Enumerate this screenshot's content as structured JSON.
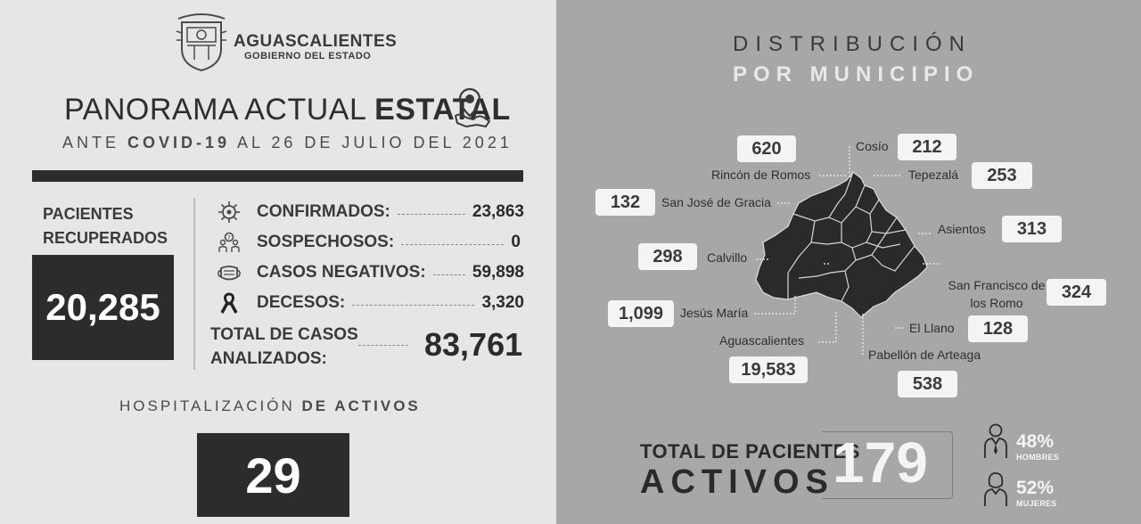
{
  "header": {
    "brand_name": "AGUASCALIENTES",
    "brand_sub": "GOBIERNO DEL ESTADO",
    "title_normal": "PANORAMA ACTUAL ",
    "title_bold": "ESTATAL",
    "subtitle_pre": "ANTE ",
    "subtitle_bold": "COVID-19",
    "subtitle_post": " AL 26 DE JULIO DEL 2021"
  },
  "recovered": {
    "label": "PACIENTES RECUPERADOS",
    "value": "20,285"
  },
  "stats": [
    {
      "label": "CONFIRMADOS:",
      "value": "23,863",
      "icon": "virus-icon"
    },
    {
      "label": "SOSPECHOSOS:",
      "value": "0",
      "icon": "suspect-icon"
    },
    {
      "label": "CASOS NEGATIVOS:",
      "value": "59,898",
      "icon": "mask-icon"
    },
    {
      "label": "DECESOS:",
      "value": "3,320",
      "icon": "ribbon-icon"
    }
  ],
  "total_analyzed": {
    "label": "TOTAL DE CASOS ANALIZADOS:",
    "value": "83,761"
  },
  "hospital": {
    "label_normal": "HOSPITALIZACIÓN ",
    "label_bold": "DE ACTIVOS",
    "value": "29"
  },
  "distribution": {
    "title_line1": "DISTRIBUCIÓN",
    "title_line2": "POR MUNICIPIO",
    "municipalities": [
      {
        "name": "Rincón de Romos",
        "value": "620"
      },
      {
        "name": "Cosío",
        "value": "212"
      },
      {
        "name": "Tepezalá",
        "value": "253"
      },
      {
        "name": "San José de Gracia",
        "value": "132"
      },
      {
        "name": "Asientos",
        "value": "313"
      },
      {
        "name": "Calvillo",
        "value": "298"
      },
      {
        "name": "San Francisco de los Romo",
        "value": "324"
      },
      {
        "name": "Jesús María",
        "value": "1,099"
      },
      {
        "name": "El Llano",
        "value": "128"
      },
      {
        "name": "Aguascalientes",
        "value": "19,583"
      },
      {
        "name": "Pabellón de Arteaga",
        "value": "538"
      }
    ]
  },
  "active": {
    "label_line1": "TOTAL DE PACIENTES",
    "label_line2": "ACTIVOS",
    "value": "179",
    "men_pct": "48%",
    "men_label": "HOMBRES",
    "women_pct": "52%",
    "women_label": "MUJERES"
  },
  "colors": {
    "left_bg": "#e6e6e6",
    "right_bg": "#a7a7a7",
    "dark_box": "#2c2c2c"
  }
}
